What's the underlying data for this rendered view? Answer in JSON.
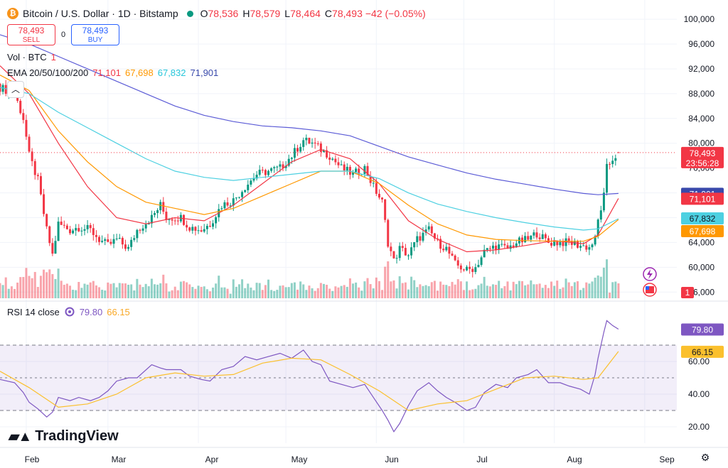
{
  "header": {
    "coin_glyph": "₿",
    "title": "Bitcoin / U.S. Dollar · 1D · Bitstamp",
    "ohlc": [
      {
        "k": "O",
        "v": "78,536"
      },
      {
        "k": "H",
        "v": "78,579"
      },
      {
        "k": "L",
        "v": "78,464"
      },
      {
        "k": "C",
        "v": "78,493"
      }
    ],
    "change": "−42 (−0.05%)"
  },
  "trade": {
    "sell_price": "78,493",
    "sell_label": "SELL",
    "spread": "0",
    "buy_price": "78,493",
    "buy_label": "BUY"
  },
  "indicators": {
    "vol_label": "Vol · BTC",
    "vol_value": "1",
    "ema_label": "EMA 20/50/100/200",
    "ema_values": [
      "71,101",
      "67,698",
      "67,832",
      "71,901"
    ],
    "rsi_label": "RSI 14 close",
    "rsi_value": "79.80",
    "rsi_ma_value": "66.15"
  },
  "colors": {
    "up": "#089981",
    "down": "#f23645",
    "ema20": "#f23645",
    "ema50": "#ff9800",
    "ema100": "#4dd0e1",
    "ema200": "#5b5bd6",
    "rsi": "#7e57c2",
    "rsi_ma": "#fbc02d"
  },
  "brand": {
    "logo_text": "TradingView"
  },
  "icons": [
    "bitcoin-icon",
    "chevron-up-icon",
    "settings-icon",
    "lightning-icon",
    "us-flag-icon"
  ],
  "chart_data": [
    {
      "type": "candlestick",
      "title": "Bitcoin / U.S. Dollar · 1D · Bitstamp",
      "y_ticks": [
        56000,
        60000,
        64000,
        68000,
        72000,
        76000,
        80000,
        84000,
        88000,
        92000,
        96000,
        100000
      ],
      "y_tick_labels": [
        "56,000",
        "60,000",
        "64,000",
        "68,000",
        "72,000",
        "76,000",
        "80,000",
        "84,000",
        "88,000",
        "92,000",
        "96,000",
        "100,000"
      ],
      "ylim": [
        55000,
        101500
      ],
      "x_labels": [
        "Feb",
        "Mar",
        "Apr",
        "May",
        "Jun",
        "Jul",
        "Aug",
        "Sep"
      ],
      "x_label_days": [
        9,
        37,
        68,
        98,
        129,
        159,
        190,
        221
      ],
      "x_range_days": [
        0,
        232
      ],
      "last_day": 212,
      "close_path": [
        [
          0,
          89000
        ],
        [
          5,
          88000
        ],
        [
          8,
          84000
        ],
        [
          10,
          78000
        ],
        [
          13,
          74000
        ],
        [
          16,
          66000
        ],
        [
          18,
          62000
        ],
        [
          20,
          67000
        ],
        [
          24,
          66000
        ],
        [
          27,
          66500
        ],
        [
          31,
          66000
        ],
        [
          34,
          64500
        ],
        [
          37,
          63500
        ],
        [
          40,
          64500
        ],
        [
          44,
          63000
        ],
        [
          47,
          66000
        ],
        [
          52,
          68000
        ],
        [
          55,
          70000
        ],
        [
          57,
          68000
        ],
        [
          62,
          68000
        ],
        [
          65,
          66500
        ],
        [
          69,
          66000
        ],
        [
          72,
          67000
        ],
        [
          76,
          70000
        ],
        [
          80,
          70800
        ],
        [
          84,
          73000
        ],
        [
          88,
          75000
        ],
        [
          92,
          75500
        ],
        [
          96,
          76000
        ],
        [
          100,
          78000
        ],
        [
          104,
          80500
        ],
        [
          107,
          80000
        ],
        [
          110,
          79000
        ],
        [
          113,
          78000
        ],
        [
          117,
          76000
        ],
        [
          121,
          75000
        ],
        [
          125,
          76000
        ],
        [
          128,
          73000
        ],
        [
          131,
          70500
        ],
        [
          133,
          64000
        ],
        [
          135,
          61000
        ],
        [
          137,
          63000
        ],
        [
          140,
          62000
        ],
        [
          143,
          64500
        ],
        [
          147,
          66000
        ],
        [
          150,
          64000
        ],
        [
          153,
          63000
        ],
        [
          156,
          60500
        ],
        [
          160,
          59500
        ],
        [
          163,
          60000
        ],
        [
          166,
          62500
        ],
        [
          170,
          63500
        ],
        [
          174,
          63000
        ],
        [
          177,
          64000
        ],
        [
          181,
          64500
        ],
        [
          184,
          65500
        ],
        [
          188,
          64000
        ],
        [
          192,
          64000
        ],
        [
          195,
          64000
        ],
        [
          199,
          63500
        ],
        [
          202,
          63200
        ],
        [
          204,
          64500
        ],
        [
          205,
          67500
        ],
        [
          207,
          71500
        ],
        [
          208,
          76000
        ],
        [
          210,
          77500
        ],
        [
          212,
          78493
        ]
      ],
      "volume_ylim": [
        0,
        60
      ],
      "volume_note": "Vol · BTC",
      "last_price_label": "78,493",
      "countdown_label": "23:56:28",
      "last_volume_label": "1",
      "ema": [
        {
          "name": "EMA 20",
          "last": 71101,
          "last_label": "71,101",
          "path": [
            [
              0,
              92500
            ],
            [
              10,
              88000
            ],
            [
              20,
              80000
            ],
            [
              30,
              73000
            ],
            [
              40,
              68000
            ],
            [
              50,
              67000
            ],
            [
              60,
              68000
            ],
            [
              70,
              67500
            ],
            [
              80,
              70000
            ],
            [
              90,
              73500
            ],
            [
              100,
              77000
            ],
            [
              110,
              79000
            ],
            [
              120,
              77500
            ],
            [
              130,
              73500
            ],
            [
              140,
              67500
            ],
            [
              150,
              64500
            ],
            [
              160,
              62500
            ],
            [
              170,
              62800
            ],
            [
              180,
              63500
            ],
            [
              190,
              64300
            ],
            [
              200,
              63800
            ],
            [
              205,
              65200
            ],
            [
              212,
              71101
            ]
          ]
        },
        {
          "name": "EMA 50",
          "last": 67698,
          "last_label": "67,698",
          "path": [
            [
              0,
              91000
            ],
            [
              10,
              88500
            ],
            [
              20,
              82000
            ],
            [
              30,
              77000
            ],
            [
              40,
              73000
            ],
            [
              50,
              70500
            ],
            [
              60,
              69500
            ],
            [
              70,
              68500
            ],
            [
              80,
              69500
            ],
            [
              90,
              71500
            ],
            [
              100,
              73500
            ],
            [
              110,
              75500
            ],
            [
              120,
              75500
            ],
            [
              130,
              73500
            ],
            [
              140,
              70000
            ],
            [
              150,
              67000
            ],
            [
              160,
              65200
            ],
            [
              170,
              64500
            ],
            [
              180,
              64300
            ],
            [
              190,
              64200
            ],
            [
              200,
              64200
            ],
            [
              205,
              65000
            ],
            [
              212,
              67698
            ]
          ]
        },
        {
          "name": "EMA 100",
          "last": 67832,
          "last_label": "67,832",
          "path": [
            [
              0,
              89000
            ],
            [
              10,
              88000
            ],
            [
              20,
              85000
            ],
            [
              30,
              82500
            ],
            [
              40,
              80000
            ],
            [
              50,
              77500
            ],
            [
              60,
              75500
            ],
            [
              70,
              74500
            ],
            [
              80,
              74000
            ],
            [
              90,
              74500
            ],
            [
              100,
              75000
            ],
            [
              110,
              75500
            ],
            [
              120,
              75500
            ],
            [
              130,
              74300
            ],
            [
              140,
              72000
            ],
            [
              150,
              70200
            ],
            [
              160,
              69000
            ],
            [
              170,
              68000
            ],
            [
              180,
              67200
            ],
            [
              190,
              66500
            ],
            [
              200,
              66000
            ],
            [
              205,
              66200
            ],
            [
              212,
              67832
            ]
          ]
        },
        {
          "name": "EMA 200",
          "last": 71901,
          "last_label": "71,901",
          "path": [
            [
              0,
              97500
            ],
            [
              10,
              96000
            ],
            [
              20,
              94000
            ],
            [
              30,
              92000
            ],
            [
              40,
              90000
            ],
            [
              50,
              88000
            ],
            [
              60,
              86000
            ],
            [
              70,
              84500
            ],
            [
              80,
              83500
            ],
            [
              90,
              82800
            ],
            [
              100,
              82500
            ],
            [
              110,
              82000
            ],
            [
              120,
              81200
            ],
            [
              130,
              79500
            ],
            [
              140,
              77800
            ],
            [
              150,
              76500
            ],
            [
              160,
              75200
            ],
            [
              170,
              74200
            ],
            [
              180,
              73400
            ],
            [
              190,
              72600
            ],
            [
              200,
              71900
            ],
            [
              205,
              71700
            ],
            [
              212,
              71901
            ]
          ]
        }
      ]
    },
    {
      "type": "line",
      "title": "RSI 14 close",
      "ylim": [
        10,
        90
      ],
      "y_ticks": [
        20,
        40,
        60
      ],
      "y_tick_labels": [
        "20.00",
        "40.00",
        "60.00"
      ],
      "bands": [
        30,
        50,
        70
      ],
      "series": [
        {
          "name": "RSI",
          "last": 79.8,
          "last_label": "79.80",
          "path": [
            [
              0,
              49
            ],
            [
              5,
              47
            ],
            [
              8,
              41
            ],
            [
              10,
              35
            ],
            [
              13,
              31
            ],
            [
              16,
              26
            ],
            [
              18,
              29
            ],
            [
              20,
              38
            ],
            [
              24,
              36
            ],
            [
              27,
              38
            ],
            [
              31,
              36
            ],
            [
              34,
              38
            ],
            [
              37,
              42
            ],
            [
              40,
              48
            ],
            [
              44,
              50
            ],
            [
              47,
              50
            ],
            [
              52,
              58
            ],
            [
              55,
              56
            ],
            [
              57,
              55
            ],
            [
              62,
              55
            ],
            [
              65,
              51
            ],
            [
              69,
              49
            ],
            [
              72,
              48
            ],
            [
              76,
              55
            ],
            [
              80,
              57
            ],
            [
              84,
              63
            ],
            [
              88,
              61
            ],
            [
              92,
              63
            ],
            [
              96,
              65
            ],
            [
              100,
              62
            ],
            [
              104,
              67
            ],
            [
              107,
              60
            ],
            [
              110,
              58
            ],
            [
              113,
              48
            ],
            [
              117,
              46
            ],
            [
              121,
              44
            ],
            [
              125,
              46
            ],
            [
              128,
              38
            ],
            [
              131,
              30
            ],
            [
              133,
              24
            ],
            [
              135,
              17
            ],
            [
              137,
              22
            ],
            [
              140,
              33
            ],
            [
              143,
              42
            ],
            [
              147,
              47
            ],
            [
              150,
              42
            ],
            [
              153,
              38
            ],
            [
              156,
              35
            ],
            [
              160,
              30
            ],
            [
              163,
              32
            ],
            [
              166,
              41
            ],
            [
              170,
              46
            ],
            [
              174,
              44
            ],
            [
              177,
              50
            ],
            [
              181,
              52
            ],
            [
              184,
              55
            ],
            [
              188,
              47
            ],
            [
              192,
              47
            ],
            [
              195,
              45
            ],
            [
              199,
              43
            ],
            [
              202,
              40
            ],
            [
              204,
              52
            ],
            [
              205,
              62
            ],
            [
              207,
              78
            ],
            [
              208,
              85
            ],
            [
              210,
              82
            ],
            [
              212,
              79.8
            ]
          ]
        },
        {
          "name": "RSI-based MA",
          "last": 66.15,
          "last_label": "66.15",
          "path": [
            [
              0,
              54
            ],
            [
              10,
              44
            ],
            [
              20,
              32
            ],
            [
              30,
              34
            ],
            [
              40,
              40
            ],
            [
              50,
              50
            ],
            [
              60,
              53
            ],
            [
              70,
              51
            ],
            [
              80,
              52
            ],
            [
              90,
              59
            ],
            [
              100,
              62
            ],
            [
              110,
              61
            ],
            [
              120,
              52
            ],
            [
              130,
              42
            ],
            [
              140,
              30
            ],
            [
              150,
              34
            ],
            [
              160,
              36
            ],
            [
              170,
              43
            ],
            [
              180,
              50
            ],
            [
              190,
              51
            ],
            [
              200,
              49
            ],
            [
              205,
              50
            ],
            [
              212,
              66.15
            ]
          ]
        }
      ]
    }
  ]
}
